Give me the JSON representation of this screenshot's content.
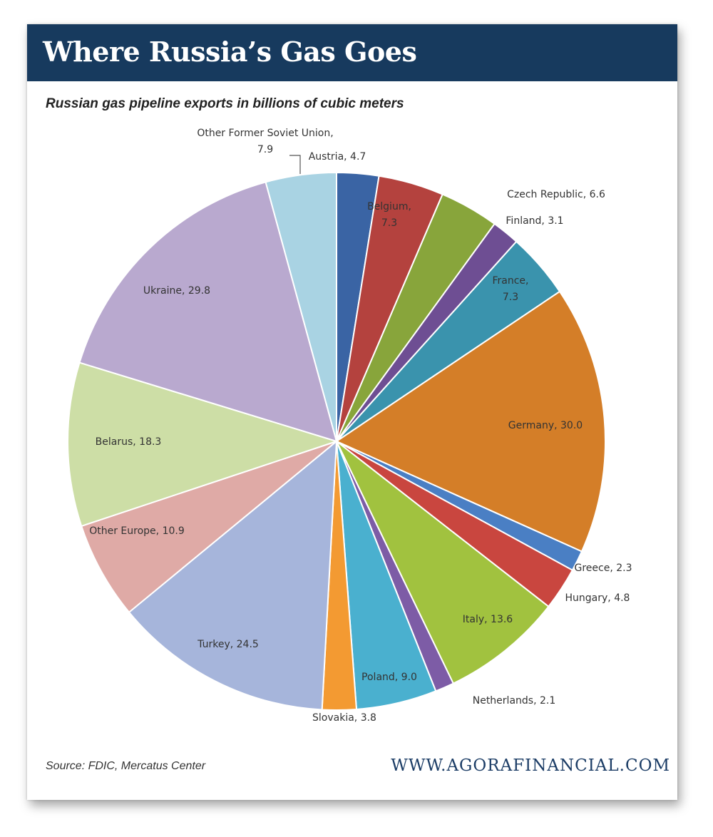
{
  "header": {
    "title": "Where Russia’s Gas Goes"
  },
  "footer": {
    "source": "Source: FDIC, Mercatus Center",
    "website": "WWW.AGORAFINANCIAL.COM"
  },
  "chart_data": {
    "type": "pie",
    "title": "Russian gas pipeline exports in billions of cubic meters",
    "start": "top",
    "direction": "clockwise",
    "slices": [
      {
        "label": "Austria",
        "value": 4.7,
        "text": "Austria, 4.7",
        "color": "#3a64a4"
      },
      {
        "label": "Belgium",
        "value": 7.3,
        "lines": [
          "Belgium,",
          "7.3"
        ],
        "color": "#b4423e"
      },
      {
        "label": "Czech Republic",
        "value": 6.6,
        "text": "Czech Republic, 6.6",
        "color": "#88a53b"
      },
      {
        "label": "Finland",
        "value": 3.1,
        "text": "Finland, 3.1",
        "color": "#6e4e93"
      },
      {
        "label": "France",
        "value": 7.3,
        "lines": [
          "France,",
          "7.3"
        ],
        "color": "#3a93ad"
      },
      {
        "label": "Germany",
        "value": 30.0,
        "text": "Germany, 30.0",
        "color": "#d47e28"
      },
      {
        "label": "Greece",
        "value": 2.3,
        "text": "Greece, 2.3",
        "color": "#4a7fc4"
      },
      {
        "label": "Hungary",
        "value": 4.8,
        "text": "Hungary, 4.8",
        "color": "#c9463f"
      },
      {
        "label": "Italy",
        "value": 13.6,
        "text": "Italy, 13.6",
        "color": "#a1c23f"
      },
      {
        "label": "Netherlands",
        "value": 2.1,
        "text": "Netherlands, 2.1",
        "color": "#7d5ca6"
      },
      {
        "label": "Poland",
        "value": 9.0,
        "text": "Poland, 9.0",
        "color": "#4ab0cf"
      },
      {
        "label": "Slovakia",
        "value": 3.8,
        "text": "Slovakia, 3.8",
        "color": "#f39a32"
      },
      {
        "label": "Turkey",
        "value": 24.5,
        "text": "Turkey, 24.5",
        "color": "#a6b5db"
      },
      {
        "label": "Other Europe",
        "value": 10.9,
        "text": "Other Europe, 10.9",
        "color": "#dfaaa6"
      },
      {
        "label": "Belarus",
        "value": 18.3,
        "text": "Belarus, 18.3",
        "color": "#cddea6"
      },
      {
        "label": "Ukraine",
        "value": 29.8,
        "text": "Ukraine, 29.8",
        "color": "#b9a9cf"
      },
      {
        "label": "Other Former Soviet Union",
        "value": 7.9,
        "lines": [
          "Other Former Soviet Union,",
          "7.9"
        ],
        "color": "#a9d3e3"
      }
    ]
  }
}
